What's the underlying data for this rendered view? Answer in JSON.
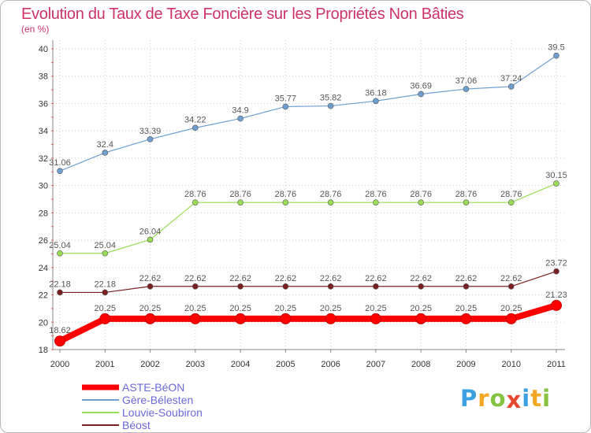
{
  "chart_data": {
    "type": "line",
    "title": "Evolution du Taux de Taxe Foncière sur les Propriétés Non Bâties",
    "ylabel": "(en %)",
    "xlabel": "",
    "categories": [
      "2000",
      "2001",
      "2002",
      "2003",
      "2004",
      "2005",
      "2006",
      "2007",
      "2008",
      "2009",
      "2010",
      "2011"
    ],
    "yticks": [
      "18",
      "20",
      "22",
      "24",
      "26",
      "28",
      "30",
      "32",
      "34",
      "36",
      "38",
      "40"
    ],
    "ylim": [
      18,
      40
    ],
    "grid": true,
    "legend_position": "bottom-left",
    "series": [
      {
        "name": "ASTE-BéON",
        "color": "#ff0000",
        "values": [
          18.62,
          20.25,
          20.25,
          20.25,
          20.25,
          20.25,
          20.25,
          20.25,
          20.25,
          20.25,
          20.25,
          21.23
        ],
        "labels": [
          "18.62",
          "20.25",
          "20.25",
          "20.25",
          "20.25",
          "20.25",
          "20.25",
          "20.25",
          "20.25",
          "20.25",
          "20.25",
          "21.23"
        ]
      },
      {
        "name": "Gère-Bélesten",
        "color": "#6d9fd0",
        "values": [
          31.06,
          32.4,
          33.39,
          34.22,
          34.9,
          35.77,
          35.82,
          36.18,
          36.69,
          37.06,
          37.24,
          39.5
        ],
        "labels": [
          "31.06",
          "32.4",
          "33.39",
          "34.22",
          "34.9",
          "35.77",
          "35.82",
          "36.18",
          "36.69",
          "37.06",
          "37.24",
          "39.5"
        ]
      },
      {
        "name": "Louvie-Soubiron",
        "color": "#99dd55",
        "values": [
          25.04,
          25.04,
          26.04,
          28.76,
          28.76,
          28.76,
          28.76,
          28.76,
          28.76,
          28.76,
          28.76,
          30.15
        ],
        "labels": [
          "25.04",
          "25.04",
          "26.04",
          "28.76",
          "28.76",
          "28.76",
          "28.76",
          "28.76",
          "28.76",
          "28.76",
          "28.76",
          "30.15"
        ]
      },
      {
        "name": "Béost",
        "color": "#7a2020",
        "values": [
          22.18,
          22.18,
          22.62,
          22.62,
          22.62,
          22.62,
          22.62,
          22.62,
          22.62,
          22.62,
          22.62,
          23.72
        ],
        "labels": [
          "22.18",
          "22.18",
          "22.62",
          "22.62",
          "22.62",
          "22.62",
          "22.62",
          "22.62",
          "22.62",
          "22.62",
          "22.62",
          "23.72"
        ]
      }
    ]
  },
  "brand": {
    "letters": [
      "P",
      "r",
      "o",
      "x",
      "i",
      "t",
      "i"
    ],
    "colors": [
      "#3aa0e0",
      "#f5a623",
      "#86c440",
      "#e8472f",
      "#3aa0e0",
      "#f5a623",
      "#86c440"
    ]
  }
}
